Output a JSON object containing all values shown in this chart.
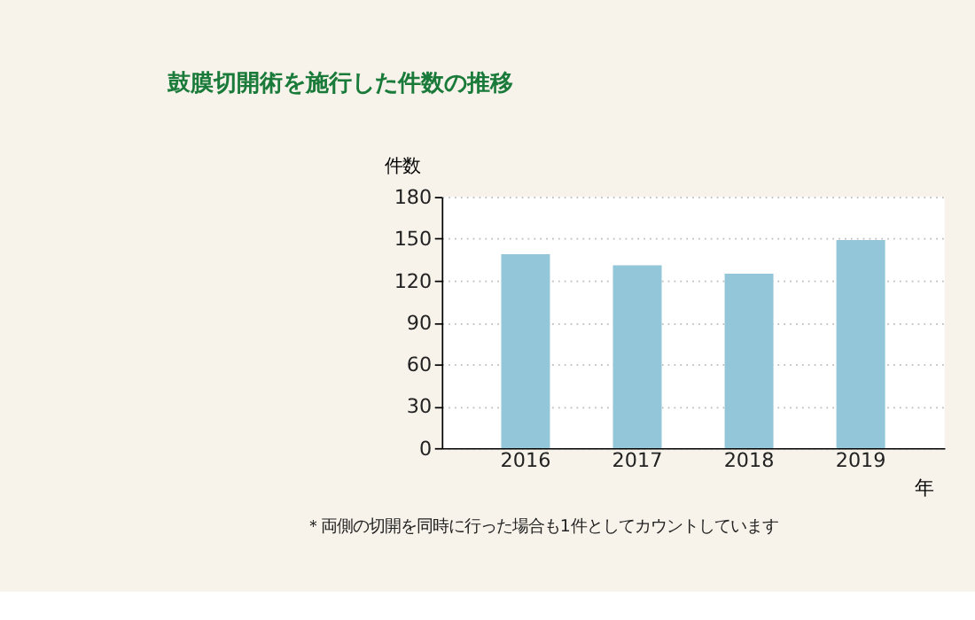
{
  "chart_data": {
    "type": "bar",
    "title": "鼓膜切開術を施行した件数の推移",
    "ylabel": "件数",
    "xlabel": "年",
    "categories": [
      "2016",
      "2017",
      "2018",
      "2019"
    ],
    "values": [
      139,
      131,
      125,
      149
    ],
    "color": "#93c6d8",
    "ylim": [
      0,
      180
    ],
    "yticks": [
      0,
      30,
      60,
      90,
      120,
      150,
      180
    ],
    "grid": "y",
    "annotations": [
      "＊両側の切開を同時に行った場合も1件としてカウントしています"
    ]
  }
}
